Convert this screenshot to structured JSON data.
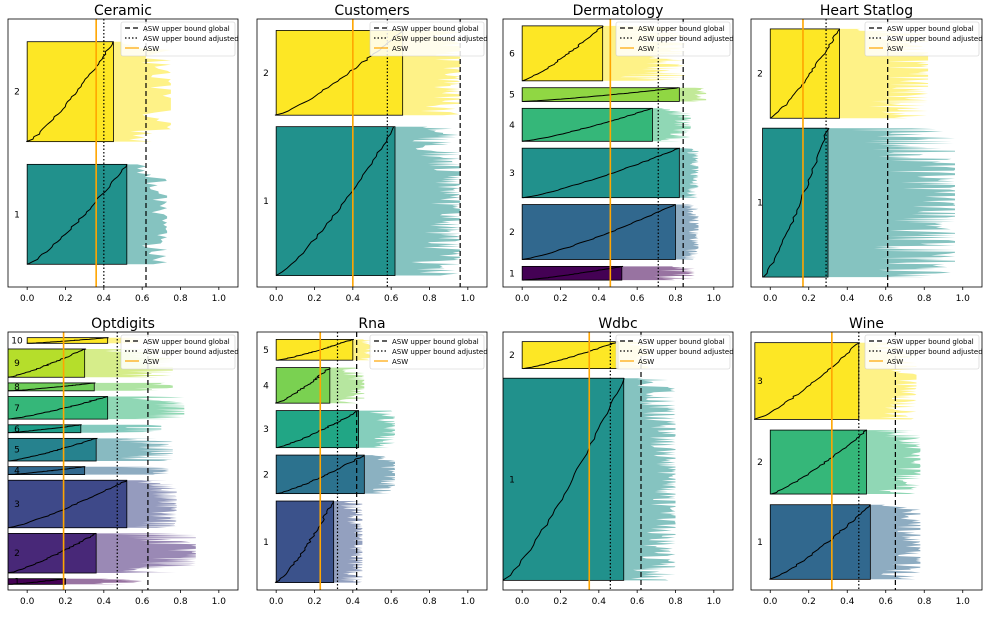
{
  "figure": {
    "x_ticks": [
      0.0,
      0.2,
      0.4,
      0.6,
      0.8,
      1.0
    ],
    "legend": {
      "global_label": "ASW upper bound global",
      "adjusted_label": "ASW upper bound adjusted",
      "asw_label": "ASW"
    },
    "colors": {
      "asw_line": "#ffa500",
      "border": "#000000"
    }
  },
  "chart_data": [
    {
      "type": "silhouette",
      "title": "Ceramic",
      "xlim": [
        -0.1,
        1.1
      ],
      "asw": 0.36,
      "bound_adjusted": 0.4,
      "bound_global": 0.62,
      "clusters": [
        {
          "label": "1",
          "size": 44,
          "min": 0.0,
          "max": 0.52,
          "spread": 0.73,
          "color": "#21918c"
        },
        {
          "label": "2",
          "size": 44,
          "min": 0.0,
          "max": 0.45,
          "spread": 0.75,
          "color": "#fde725"
        }
      ]
    },
    {
      "type": "silhouette",
      "title": "Customers",
      "xlim": [
        -0.1,
        1.1
      ],
      "asw": 0.4,
      "bound_adjusted": 0.58,
      "bound_global": 0.96,
      "clusters": [
        {
          "label": "1",
          "size": 130,
          "min": 0.0,
          "max": 0.62,
          "spread": 0.96,
          "color": "#21918c"
        },
        {
          "label": "2",
          "size": 74,
          "min": 0.0,
          "max": 0.66,
          "spread": 0.96,
          "color": "#fde725"
        }
      ]
    },
    {
      "type": "silhouette",
      "title": "Dermatology",
      "xlim": [
        -0.1,
        1.1
      ],
      "asw": 0.46,
      "bound_adjusted": 0.71,
      "bound_global": 0.84,
      "clusters": [
        {
          "label": "1",
          "size": 20,
          "min": 0.0,
          "max": 0.52,
          "spread": 0.9,
          "color": "#440154"
        },
        {
          "label": "2",
          "size": 80,
          "min": 0.0,
          "max": 0.8,
          "spread": 0.92,
          "color": "#31688e"
        },
        {
          "label": "3",
          "size": 72,
          "min": 0.0,
          "max": 0.82,
          "spread": 0.92,
          "color": "#21918c"
        },
        {
          "label": "4",
          "size": 48,
          "min": 0.0,
          "max": 0.68,
          "spread": 0.88,
          "color": "#35b779"
        },
        {
          "label": "5",
          "size": 20,
          "min": 0.0,
          "max": 0.82,
          "spread": 0.96,
          "color": "#90d743"
        },
        {
          "label": "6",
          "size": 80,
          "min": 0.0,
          "max": 0.42,
          "spread": 0.85,
          "color": "#fde725"
        }
      ]
    },
    {
      "type": "silhouette",
      "title": "Heart Statlog",
      "xlim": [
        -0.1,
        1.1
      ],
      "asw": 0.17,
      "bound_adjusted": 0.29,
      "bound_global": 0.61,
      "clusters": [
        {
          "label": "1",
          "size": 150,
          "min": -0.04,
          "max": 0.3,
          "spread": 0.96,
          "color": "#21918c"
        },
        {
          "label": "2",
          "size": 90,
          "min": 0.0,
          "max": 0.36,
          "spread": 0.82,
          "color": "#fde725"
        }
      ]
    },
    {
      "type": "silhouette",
      "title": "Optdigits",
      "xlim": [
        -0.1,
        1.1
      ],
      "asw": 0.19,
      "bound_adjusted": 0.47,
      "bound_global": 0.63,
      "clusters": [
        {
          "label": "1",
          "size": 10,
          "min": -0.1,
          "max": 0.2,
          "spread": 0.6,
          "color": "#440154"
        },
        {
          "label": "2",
          "size": 70,
          "min": -0.1,
          "max": 0.36,
          "spread": 0.88,
          "color": "#482878"
        },
        {
          "label": "3",
          "size": 84,
          "min": -0.1,
          "max": 0.52,
          "spread": 0.78,
          "color": "#3e4989"
        },
        {
          "label": "4",
          "size": 14,
          "min": -0.1,
          "max": 0.3,
          "spread": 0.74,
          "color": "#31688e"
        },
        {
          "label": "5",
          "size": 40,
          "min": -0.1,
          "max": 0.36,
          "spread": 0.76,
          "color": "#26828e"
        },
        {
          "label": "6",
          "size": 14,
          "min": -0.1,
          "max": 0.28,
          "spread": 0.7,
          "color": "#1f9e89"
        },
        {
          "label": "7",
          "size": 40,
          "min": -0.1,
          "max": 0.42,
          "spread": 0.82,
          "color": "#35b779"
        },
        {
          "label": "8",
          "size": 14,
          "min": -0.1,
          "max": 0.35,
          "spread": 0.76,
          "color": "#6ece58"
        },
        {
          "label": "9",
          "size": 50,
          "min": -0.1,
          "max": 0.3,
          "spread": 0.76,
          "color": "#b5de2b"
        },
        {
          "label": "10",
          "size": 10,
          "min": 0.0,
          "max": 0.42,
          "spread": 0.62,
          "color": "#fde725"
        }
      ]
    },
    {
      "type": "silhouette",
      "title": "Rna",
      "xlim": [
        -0.1,
        1.1
      ],
      "asw": 0.23,
      "bound_adjusted": 0.32,
      "bound_global": 0.42,
      "clusters": [
        {
          "label": "1",
          "size": 110,
          "min": 0.0,
          "max": 0.3,
          "spread": 0.45,
          "color": "#3b528b"
        },
        {
          "label": "2",
          "size": 52,
          "min": 0.0,
          "max": 0.46,
          "spread": 0.62,
          "color": "#2c728e"
        },
        {
          "label": "3",
          "size": 50,
          "min": 0.0,
          "max": 0.43,
          "spread": 0.62,
          "color": "#21a685"
        },
        {
          "label": "4",
          "size": 48,
          "min": 0.0,
          "max": 0.28,
          "spread": 0.46,
          "color": "#7ad151"
        },
        {
          "label": "5",
          "size": 28,
          "min": 0.0,
          "max": 0.4,
          "spread": 0.5,
          "color": "#fde725"
        }
      ]
    },
    {
      "type": "silhouette",
      "title": "Wdbc",
      "xlim": [
        -0.1,
        1.1
      ],
      "asw": 0.35,
      "bound_adjusted": 0.46,
      "bound_global": 0.62,
      "clusters": [
        {
          "label": "1",
          "size": 210,
          "min": -0.1,
          "max": 0.53,
          "spread": 0.8,
          "color": "#21918c"
        },
        {
          "label": "2",
          "size": 28,
          "min": 0.0,
          "max": 0.5,
          "spread": 0.66,
          "color": "#fde725"
        }
      ]
    },
    {
      "type": "silhouette",
      "title": "Wine",
      "xlim": [
        -0.1,
        1.1
      ],
      "asw": 0.32,
      "bound_adjusted": 0.46,
      "bound_global": 0.65,
      "clusters": [
        {
          "label": "1",
          "size": 70,
          "min": 0.0,
          "max": 0.52,
          "spread": 0.78,
          "color": "#31688e"
        },
        {
          "label": "2",
          "size": 60,
          "min": 0.0,
          "max": 0.5,
          "spread": 0.78,
          "color": "#35b779"
        },
        {
          "label": "3",
          "size": 72,
          "min": -0.08,
          "max": 0.46,
          "spread": 0.76,
          "color": "#fde725"
        }
      ]
    }
  ]
}
